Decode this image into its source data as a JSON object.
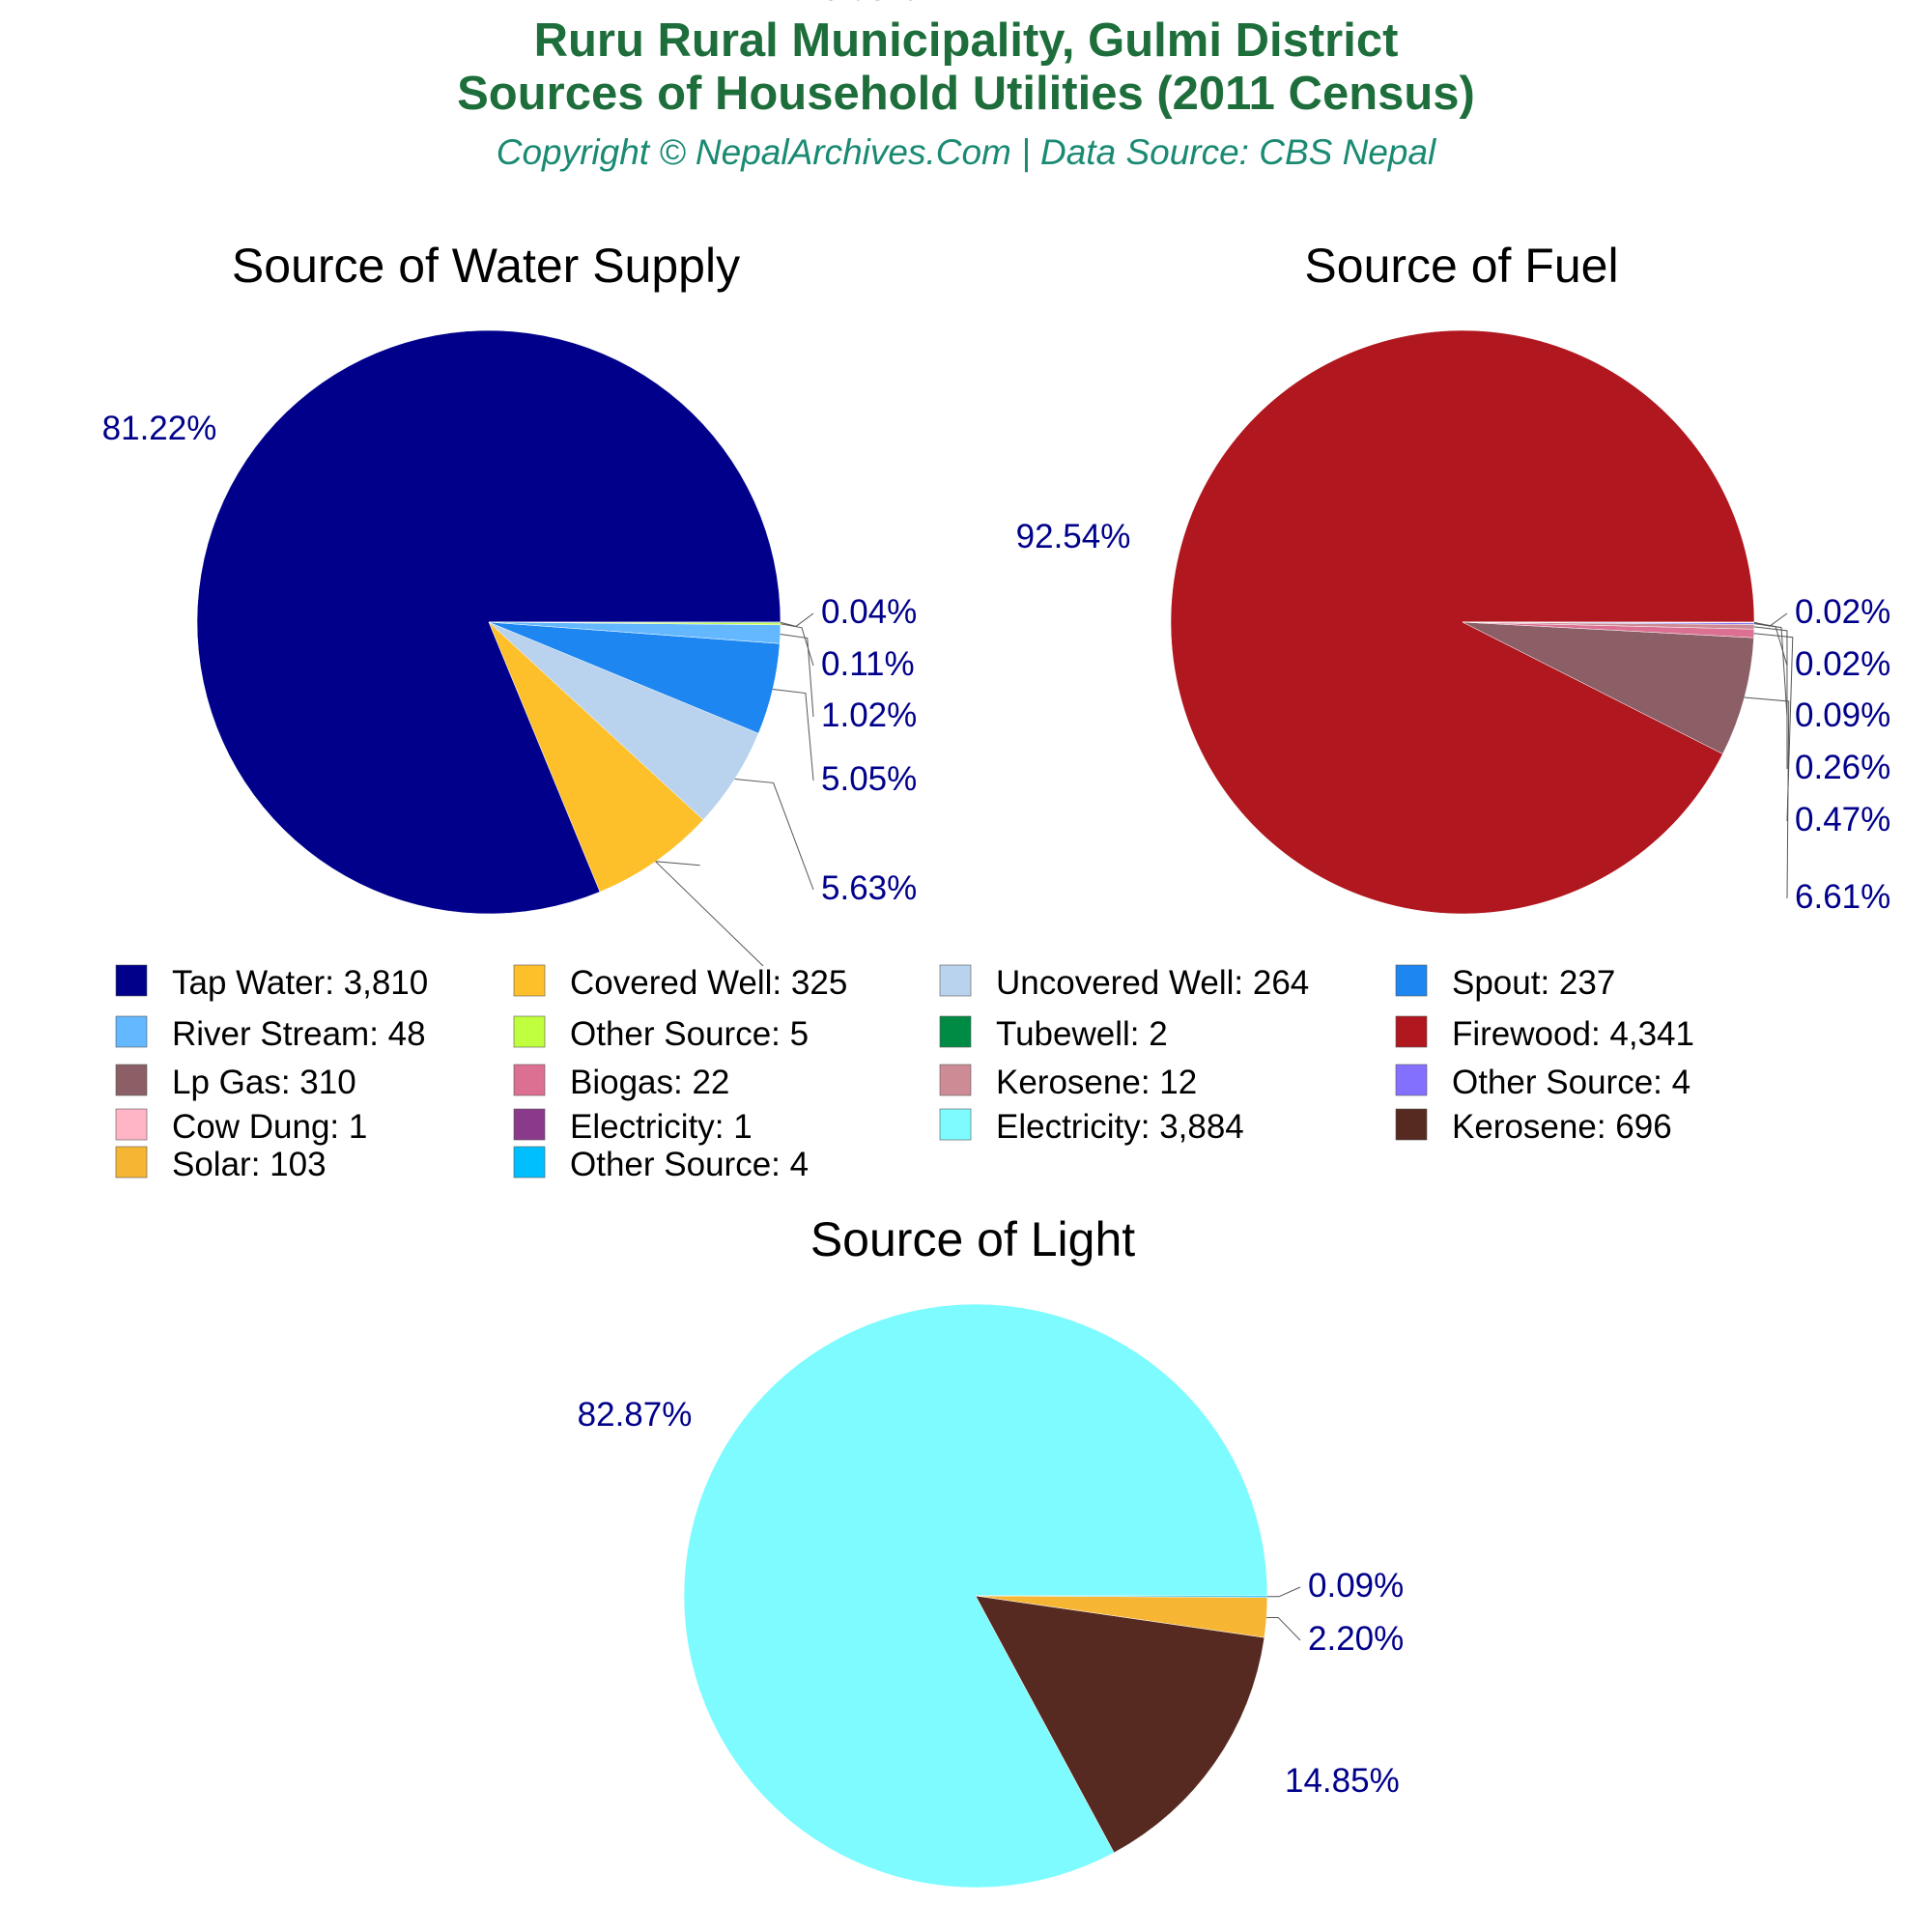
{
  "header": {
    "title_line1": "Ruru Rural Municipality, Gulmi District",
    "title_line2": "Sources of Household Utilities (2011 Census)",
    "copyright": "Copyright © NepalArchives.Com | Data Source: CBS Nepal",
    "title_color": "#1e6e3c",
    "copyright_color": "#1a8a73"
  },
  "label_color": "#00008b",
  "chart_data": [
    {
      "type": "pie",
      "title": "Source of Water Supply",
      "slices": [
        {
          "label": "Tap Water",
          "value": 3810,
          "display": "3,810",
          "pct": "81.22%",
          "color": "#00008b"
        },
        {
          "label": "Covered Well",
          "value": 325,
          "display": "325",
          "pct": "6.93%",
          "color": "#fec02a"
        },
        {
          "label": "Uncovered Well",
          "value": 264,
          "display": "264",
          "pct": "5.63%",
          "color": "#b9d3ee"
        },
        {
          "label": "Spout",
          "value": 237,
          "display": "237",
          "pct": "5.05%",
          "color": "#1e86f0"
        },
        {
          "label": "River Stream",
          "value": 48,
          "display": "48",
          "pct": "1.02%",
          "color": "#63b8ff"
        },
        {
          "label": "Other Source",
          "value": 5,
          "display": "5",
          "pct": "0.11%",
          "color": "#c0ff3e"
        },
        {
          "label": "Tubewell",
          "value": 2,
          "display": "2",
          "pct": "0.04%",
          "color": "#008b45"
        }
      ]
    },
    {
      "type": "pie",
      "title": "Source of Fuel",
      "slices": [
        {
          "label": "Firewood",
          "value": 4341,
          "display": "4,341",
          "pct": "92.54%",
          "color": "#b0171f"
        },
        {
          "label": "Lp Gas",
          "value": 310,
          "display": "310",
          "pct": "6.61%",
          "color": "#8b5f65"
        },
        {
          "label": "Biogas",
          "value": 22,
          "display": "22",
          "pct": "0.47%",
          "color": "#db7093"
        },
        {
          "label": "Kerosene",
          "value": 12,
          "display": "12",
          "pct": "0.26%",
          "color": "#cd8c95"
        },
        {
          "label": "Other Source",
          "value": 4,
          "display": "4",
          "pct": "0.09%",
          "color": "#8470ff"
        },
        {
          "label": "Cow Dung",
          "value": 1,
          "display": "1",
          "pct": "0.02%",
          "color": "#ffb5c5"
        },
        {
          "label": "Electricity",
          "value": 1,
          "display": "1",
          "pct": "0.02%",
          "color": "#8b3a8b"
        }
      ]
    },
    {
      "type": "pie",
      "title": "Source of Light",
      "slices": [
        {
          "label": "Electricity",
          "value": 3884,
          "display": "3,884",
          "pct": "82.87%",
          "color": "#7dfbff"
        },
        {
          "label": "Kerosene",
          "value": 696,
          "display": "696",
          "pct": "14.85%",
          "color": "#562a20"
        },
        {
          "label": "Solar",
          "value": 103,
          "display": "103",
          "pct": "2.20%",
          "color": "#f7b534"
        },
        {
          "label": "Other Source",
          "value": 4,
          "display": "4",
          "pct": "0.09%",
          "color": "#00bfff"
        }
      ]
    }
  ],
  "legend": [
    {
      "text": "Tap Water: 3,810",
      "color": "#00008b"
    },
    {
      "text": "Covered Well: 325",
      "color": "#fec02a"
    },
    {
      "text": "Uncovered Well: 264",
      "color": "#b9d3ee"
    },
    {
      "text": "Spout: 237",
      "color": "#1e86f0"
    },
    {
      "text": "River Stream: 48",
      "color": "#63b8ff"
    },
    {
      "text": "Other Source: 5",
      "color": "#c0ff3e"
    },
    {
      "text": "Tubewell: 2",
      "color": "#008b45"
    },
    {
      "text": "Firewood: 4,341",
      "color": "#b0171f"
    },
    {
      "text": "Lp Gas: 310",
      "color": "#8b5f65"
    },
    {
      "text": "Biogas: 22",
      "color": "#db7093"
    },
    {
      "text": "Kerosene: 12",
      "color": "#cd8c95"
    },
    {
      "text": "Other Source: 4",
      "color": "#8470ff"
    },
    {
      "text": "Cow Dung: 1",
      "color": "#ffb5c5"
    },
    {
      "text": "Electricity: 1",
      "color": "#8b3a8b"
    },
    {
      "text": "Electricity: 3,884",
      "color": "#7dfbff"
    },
    {
      "text": "Kerosene: 696",
      "color": "#562a20"
    },
    {
      "text": "Solar: 103",
      "color": "#f7b534"
    },
    {
      "text": "Other Source: 4",
      "color": "#00bfff"
    }
  ]
}
